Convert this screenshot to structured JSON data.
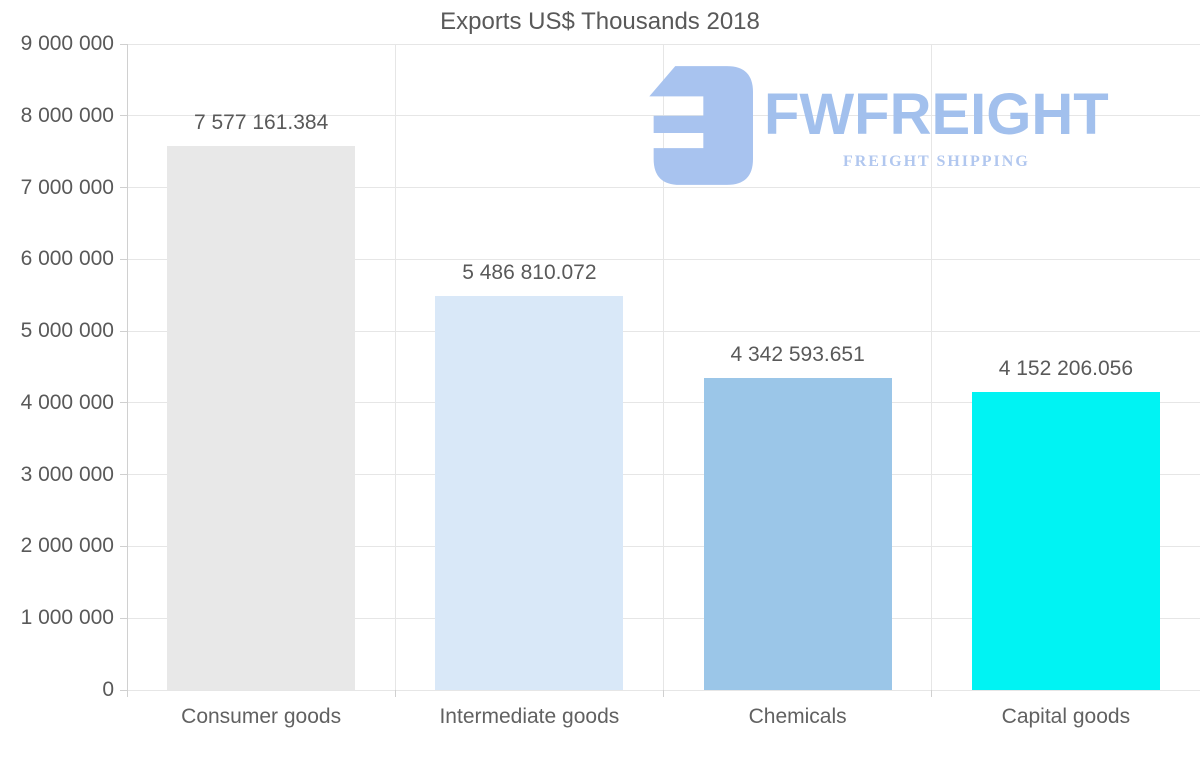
{
  "chart_data": {
    "type": "bar",
    "title": "Exports US$ Thousands 2018",
    "categories": [
      "Consumer goods",
      "Intermediate goods",
      "Chemicals",
      "Capital goods"
    ],
    "values": [
      7577161.384,
      5486810.072,
      4342593.651,
      4152206.056
    ],
    "value_labels": [
      "7 577 161.384",
      "5 486 810.072",
      "4 342 593.651",
      "4 152 206.056"
    ],
    "bar_colors": [
      "#e8e8e8",
      "#d9e8f8",
      "#9bc6e8",
      "#00f3f3"
    ],
    "y_tick_labels": [
      "9 000 000",
      "8 000 000",
      "7 000 000",
      "6 000 000",
      "5 000 000",
      "4 000 000",
      "3 000 000",
      "2 000 000",
      "1 000 000",
      "0"
    ],
    "ylim": [
      0,
      9000000
    ],
    "xlabel": "",
    "ylabel": "",
    "grid": true,
    "legend": "none"
  },
  "watermark": {
    "brand": "FWFREIGHT",
    "tagline": "FREIGHT SHIPPING",
    "logo_icon": "fwfreight-mark",
    "brand_color": "#a2c0ed",
    "tagline_color": "#b1c7ef",
    "mark_color": "#a8c3ef"
  },
  "style": {
    "text_color": "#595959",
    "category_color": "#616161",
    "grid_color": "#e6e6e6",
    "axis_color": "#d0d0d0",
    "background": "#ffffff"
  }
}
